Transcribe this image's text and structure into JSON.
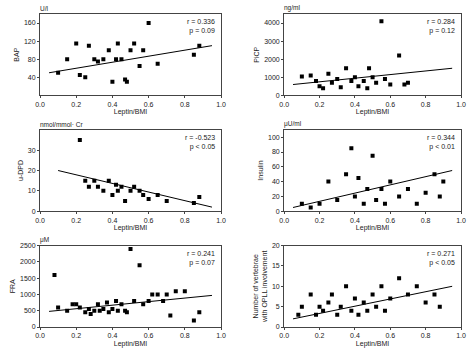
{
  "chart_data": [
    {
      "type": "scatter",
      "xlabel": "Leptin/BMI",
      "ylabel": "BAP",
      "annotations": [
        "r = 0.336\np = 0.09",
        "U/l"
      ],
      "xlim": [
        0,
        1
      ],
      "ylim": [
        0,
        180
      ],
      "xticks": [
        {
          "value": 0,
          "label": "0.0"
        },
        0.2,
        0.4,
        0.6,
        0.8,
        {
          "value": 1,
          "label": "1.0"
        }
      ],
      "yticks": [
        40,
        80,
        120,
        160
      ],
      "grid": false,
      "series": [
        {
          "type": "scatter",
          "marker": "square",
          "color": "black",
          "x": [
            0.1,
            0.15,
            0.2,
            0.22,
            0.25,
            0.27,
            0.3,
            0.32,
            0.35,
            0.38,
            0.4,
            0.42,
            0.43,
            0.45,
            0.47,
            0.48,
            0.5,
            0.52,
            0.55,
            0.57,
            0.6,
            0.65,
            0.85,
            0.88
          ],
          "values": [
            50,
            80,
            115,
            45,
            40,
            110,
            80,
            75,
            80,
            100,
            30,
            80,
            115,
            80,
            35,
            30,
            100,
            115,
            65,
            100,
            160,
            70,
            90,
            110
          ]
        },
        {
          "type": "line",
          "color": "black",
          "x": [
            0.05,
            0.95
          ],
          "values": [
            50,
            110
          ]
        }
      ]
    },
    {
      "type": "scatter",
      "xlabel": "Leptin/BMI",
      "ylabel": "PiCP",
      "annotations": [
        "r = 0.284\np = 0.12",
        "ng/ml"
      ],
      "xlim": [
        0,
        1
      ],
      "ylim": [
        0,
        4500
      ],
      "xticks": [
        {
          "value": 0,
          "label": "0.0"
        },
        0.2,
        0.4,
        0.6,
        0.8,
        {
          "value": 1,
          "label": "1.0"
        }
      ],
      "yticks": [
        0,
        1000,
        2000,
        3000,
        4000
      ],
      "grid": false,
      "series": [
        {
          "type": "scatter",
          "marker": "square",
          "color": "black",
          "x": [
            0.1,
            0.15,
            0.18,
            0.2,
            0.22,
            0.25,
            0.27,
            0.3,
            0.32,
            0.35,
            0.38,
            0.4,
            0.42,
            0.45,
            0.47,
            0.48,
            0.5,
            0.52,
            0.55,
            0.57,
            0.6,
            0.65,
            0.68,
            0.7
          ],
          "values": [
            1050,
            1100,
            800,
            500,
            400,
            1200,
            700,
            900,
            450,
            1500,
            800,
            1000,
            500,
            800,
            400,
            1500,
            1000,
            700,
            4100,
            900,
            600,
            2200,
            600,
            700
          ]
        },
        {
          "type": "line",
          "color": "black",
          "x": [
            0.05,
            0.95
          ],
          "values": [
            600,
            1500
          ]
        }
      ]
    },
    {
      "type": "scatter",
      "xlabel": "Leptin/BMI",
      "ylabel": "u-DPD",
      "annotations": [
        "r = -0.523\np < 0.05",
        "nmol/mmol· Cr"
      ],
      "xlim": [
        0,
        1
      ],
      "ylim": [
        0,
        40
      ],
      "xticks": [
        {
          "value": 0,
          "label": "0.0"
        },
        0.2,
        0.4,
        0.6,
        0.8,
        {
          "value": 1,
          "label": "1.0"
        }
      ],
      "yticks": [
        0,
        10,
        20,
        30
      ],
      "grid": false,
      "series": [
        {
          "type": "scatter",
          "marker": "square",
          "color": "black",
          "x": [
            0.22,
            0.25,
            0.27,
            0.3,
            0.32,
            0.35,
            0.38,
            0.4,
            0.42,
            0.43,
            0.45,
            0.47,
            0.5,
            0.52,
            0.55,
            0.57,
            0.6,
            0.65,
            0.7,
            0.85,
            0.88
          ],
          "values": [
            35,
            15,
            12,
            15,
            12,
            10,
            15,
            8,
            13,
            10,
            12,
            5,
            10,
            12,
            10,
            8,
            6,
            8,
            5,
            4,
            7
          ]
        },
        {
          "type": "line",
          "color": "black",
          "x": [
            0.1,
            0.95
          ],
          "values": [
            20,
            2
          ]
        }
      ]
    },
    {
      "type": "scatter",
      "xlabel": "Leptin/BMI",
      "ylabel": "Insulin",
      "annotations": [
        "r = 0.344\np < 0.01",
        "μU/ml"
      ],
      "xlim": [
        0,
        1
      ],
      "ylim": [
        0,
        110
      ],
      "xticks": [
        {
          "value": 0,
          "label": "0.0"
        },
        0.2,
        0.4,
        0.6,
        0.8,
        {
          "value": 1,
          "label": "1.0"
        }
      ],
      "yticks": [
        0,
        20,
        40,
        60,
        80,
        100
      ],
      "grid": false,
      "series": [
        {
          "type": "scatter",
          "marker": "square",
          "color": "black",
          "x": [
            0.1,
            0.15,
            0.2,
            0.25,
            0.3,
            0.35,
            0.38,
            0.4,
            0.42,
            0.45,
            0.47,
            0.5,
            0.52,
            0.55,
            0.57,
            0.6,
            0.65,
            0.7,
            0.75,
            0.8,
            0.85,
            0.88,
            0.9
          ],
          "values": [
            10,
            5,
            10,
            40,
            15,
            50,
            85,
            20,
            45,
            10,
            30,
            75,
            15,
            30,
            10,
            40,
            20,
            30,
            10,
            25,
            50,
            20,
            40
          ]
        },
        {
          "type": "line",
          "color": "black",
          "x": [
            0.05,
            0.95
          ],
          "values": [
            5,
            55
          ]
        }
      ]
    },
    {
      "type": "scatter",
      "xlabel": "Leptin/BMI",
      "ylabel": "FRA",
      "annotations": [
        "r = 0.241\np = 0.07",
        "μM"
      ],
      "xlim": [
        0,
        1
      ],
      "ylim": [
        0,
        2500
      ],
      "xticks": [
        {
          "value": 0,
          "label": "0.0"
        },
        0.2,
        0.4,
        0.6,
        0.8,
        {
          "value": 1,
          "label": "1.0"
        }
      ],
      "yticks": [
        0,
        500,
        1000,
        1500,
        2000,
        2500
      ],
      "grid": false,
      "series": [
        {
          "type": "scatter",
          "marker": "square",
          "color": "black",
          "x": [
            0.08,
            0.1,
            0.15,
            0.18,
            0.2,
            0.22,
            0.25,
            0.27,
            0.28,
            0.3,
            0.32,
            0.33,
            0.35,
            0.37,
            0.38,
            0.4,
            0.42,
            0.43,
            0.45,
            0.47,
            0.48,
            0.5,
            0.52,
            0.55,
            0.57,
            0.6,
            0.62,
            0.65,
            0.68,
            0.7,
            0.72,
            0.75,
            0.8,
            0.85,
            0.88
          ],
          "values": [
            1600,
            600,
            500,
            700,
            700,
            600,
            450,
            550,
            400,
            500,
            700,
            500,
            550,
            750,
            450,
            550,
            800,
            500,
            700,
            500,
            450,
            2400,
            800,
            1900,
            700,
            800,
            1000,
            1000,
            800,
            1000,
            350,
            1100,
            1100,
            200,
            450
          ]
        },
        {
          "type": "line",
          "color": "black",
          "x": [
            0.05,
            0.95
          ],
          "values": [
            480,
            970
          ]
        }
      ]
    },
    {
      "type": "scatter",
      "xlabel": "Leptin/BMI",
      "ylabel": "Number of vertebrae\nwith OPLL involvement",
      "annotations": [
        "r = 0.271\np < 0.05"
      ],
      "xlim": [
        0,
        1
      ],
      "ylim": [
        0,
        20
      ],
      "xticks": [
        {
          "value": 0,
          "label": "0.0"
        },
        0.2,
        0.4,
        0.6,
        0.8,
        {
          "value": 1,
          "label": "1.0"
        }
      ],
      "yticks": [
        0,
        5,
        10,
        15,
        20
      ],
      "grid": false,
      "series": [
        {
          "type": "scatter",
          "marker": "square",
          "color": "black",
          "x": [
            0.08,
            0.1,
            0.15,
            0.18,
            0.2,
            0.22,
            0.25,
            0.27,
            0.3,
            0.32,
            0.35,
            0.38,
            0.4,
            0.42,
            0.45,
            0.47,
            0.5,
            0.52,
            0.55,
            0.57,
            0.6,
            0.65,
            0.7,
            0.75,
            0.8,
            0.85,
            0.88
          ],
          "values": [
            3,
            5,
            8,
            3,
            5,
            4,
            6,
            8,
            3,
            5,
            10,
            4,
            7,
            3,
            6,
            4,
            8,
            5,
            10,
            4,
            7,
            12,
            8,
            10,
            6,
            8,
            5
          ]
        },
        {
          "type": "line",
          "color": "black",
          "x": [
            0.05,
            0.95
          ],
          "values": [
            2,
            10
          ]
        }
      ]
    }
  ]
}
